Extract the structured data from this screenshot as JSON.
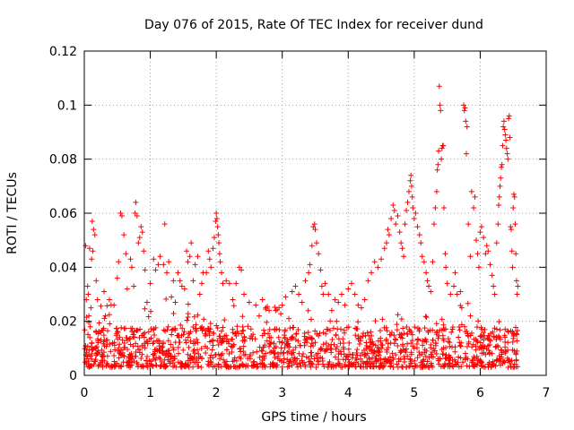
{
  "chart_data": {
    "type": "scatter",
    "title": "Day 076 of 2015, Rate Of TEC Index for receiver dund",
    "xlabel": "GPS time / hours",
    "ylabel": "ROTI / TECUs",
    "xlim": [
      0,
      7
    ],
    "ylim": [
      0,
      0.12
    ],
    "xticks": [
      0,
      1,
      2,
      3,
      4,
      5,
      6,
      7
    ],
    "xtick_labels": [
      "0",
      "1",
      "2",
      "3",
      "4",
      "5",
      "6",
      "7"
    ],
    "yticks": [
      0,
      0.02,
      0.04,
      0.06,
      0.08,
      0.1,
      0.12
    ],
    "ytick_labels": [
      "0",
      "0.02",
      "0.04",
      "0.06",
      "0.08",
      "0.1",
      "0.12"
    ],
    "grid": true,
    "marker": "plus",
    "color": "#ff0000",
    "series": [
      {
        "name": "ROTI",
        "points": [
          [
            0.02,
            0.048
          ],
          [
            0.03,
            0.028
          ],
          [
            0.05,
            0.033
          ],
          [
            0.06,
            0.03
          ],
          [
            0.07,
            0.022
          ],
          [
            0.08,
            0.047
          ],
          [
            0.09,
            0.018
          ],
          [
            0.1,
            0.025
          ],
          [
            0.11,
            0.043
          ],
          [
            0.12,
            0.057
          ],
          [
            0.13,
            0.046
          ],
          [
            0.14,
            0.054
          ],
          [
            0.16,
            0.052
          ],
          [
            0.18,
            0.035
          ],
          [
            0.2,
            0.028
          ],
          [
            0.3,
            0.031
          ],
          [
            0.32,
            0.022
          ],
          [
            0.38,
            0.028
          ],
          [
            0.45,
            0.026
          ],
          [
            0.5,
            0.036
          ],
          [
            0.52,
            0.042
          ],
          [
            0.55,
            0.06
          ],
          [
            0.57,
            0.059
          ],
          [
            0.6,
            0.052
          ],
          [
            0.63,
            0.045
          ],
          [
            0.65,
            0.032
          ],
          [
            0.7,
            0.043
          ],
          [
            0.72,
            0.04
          ],
          [
            0.75,
            0.033
          ],
          [
            0.77,
            0.06
          ],
          [
            0.78,
            0.064
          ],
          [
            0.8,
            0.059
          ],
          [
            0.82,
            0.049
          ],
          [
            0.84,
            0.051
          ],
          [
            0.86,
            0.055
          ],
          [
            0.88,
            0.053
          ],
          [
            0.9,
            0.046
          ],
          [
            0.92,
            0.039
          ],
          [
            0.95,
            0.027
          ],
          [
            1.0,
            0.034
          ],
          [
            1.05,
            0.043
          ],
          [
            1.08,
            0.039
          ],
          [
            1.12,
            0.041
          ],
          [
            1.15,
            0.044
          ],
          [
            1.2,
            0.041
          ],
          [
            1.22,
            0.056
          ],
          [
            1.25,
            0.038
          ],
          [
            1.28,
            0.042
          ],
          [
            1.32,
            0.029
          ],
          [
            1.35,
            0.035
          ],
          [
            1.38,
            0.027
          ],
          [
            1.42,
            0.038
          ],
          [
            1.45,
            0.035
          ],
          [
            1.48,
            0.033
          ],
          [
            1.52,
            0.032
          ],
          [
            1.55,
            0.046
          ],
          [
            1.57,
            0.042
          ],
          [
            1.6,
            0.044
          ],
          [
            1.62,
            0.049
          ],
          [
            1.65,
            0.035
          ],
          [
            1.68,
            0.041
          ],
          [
            1.72,
            0.044
          ],
          [
            1.75,
            0.03
          ],
          [
            1.78,
            0.034
          ],
          [
            1.8,
            0.038
          ],
          [
            1.85,
            0.038
          ],
          [
            1.88,
            0.046
          ],
          [
            1.9,
            0.043
          ],
          [
            1.92,
            0.04
          ],
          [
            1.95,
            0.047
          ],
          [
            1.97,
            0.051
          ],
          [
            1.99,
            0.057
          ],
          [
            2.0,
            0.06
          ],
          [
            2.01,
            0.058
          ],
          [
            2.02,
            0.055
          ],
          [
            2.03,
            0.052
          ],
          [
            2.04,
            0.049
          ],
          [
            2.05,
            0.045
          ],
          [
            2.06,
            0.042
          ],
          [
            2.08,
            0.038
          ],
          [
            2.1,
            0.034
          ],
          [
            2.15,
            0.035
          ],
          [
            2.2,
            0.034
          ],
          [
            2.25,
            0.028
          ],
          [
            2.3,
            0.034
          ],
          [
            2.35,
            0.04
          ],
          [
            2.38,
            0.039
          ],
          [
            2.42,
            0.03
          ],
          [
            2.5,
            0.027
          ],
          [
            2.6,
            0.026
          ],
          [
            2.65,
            0.022
          ],
          [
            2.7,
            0.028
          ],
          [
            2.75,
            0.025
          ],
          [
            2.8,
            0.024
          ],
          [
            2.9,
            0.024
          ],
          [
            2.95,
            0.025
          ],
          [
            3.0,
            0.026
          ],
          [
            3.05,
            0.029
          ],
          [
            3.1,
            0.021
          ],
          [
            3.15,
            0.031
          ],
          [
            3.2,
            0.033
          ],
          [
            3.25,
            0.03
          ],
          [
            3.3,
            0.027
          ],
          [
            3.35,
            0.035
          ],
          [
            3.4,
            0.038
          ],
          [
            3.42,
            0.041
          ],
          [
            3.45,
            0.048
          ],
          [
            3.47,
            0.055
          ],
          [
            3.49,
            0.056
          ],
          [
            3.5,
            0.054
          ],
          [
            3.52,
            0.049
          ],
          [
            3.55,
            0.045
          ],
          [
            3.58,
            0.039
          ],
          [
            3.6,
            0.033
          ],
          [
            3.62,
            0.03
          ],
          [
            3.65,
            0.034
          ],
          [
            3.7,
            0.03
          ],
          [
            3.75,
            0.024
          ],
          [
            3.8,
            0.028
          ],
          [
            3.85,
            0.027
          ],
          [
            3.9,
            0.03
          ],
          [
            3.95,
            0.026
          ],
          [
            4.0,
            0.032
          ],
          [
            4.05,
            0.034
          ],
          [
            4.1,
            0.03
          ],
          [
            4.15,
            0.026
          ],
          [
            4.2,
            0.025
          ],
          [
            4.25,
            0.028
          ],
          [
            4.3,
            0.035
          ],
          [
            4.35,
            0.038
          ],
          [
            4.4,
            0.042
          ],
          [
            4.45,
            0.04
          ],
          [
            4.5,
            0.043
          ],
          [
            4.55,
            0.047
          ],
          [
            4.58,
            0.049
          ],
          [
            4.6,
            0.054
          ],
          [
            4.62,
            0.052
          ],
          [
            4.65,
            0.058
          ],
          [
            4.68,
            0.063
          ],
          [
            4.7,
            0.061
          ],
          [
            4.72,
            0.056
          ],
          [
            4.75,
            0.059
          ],
          [
            4.78,
            0.053
          ],
          [
            4.8,
            0.049
          ],
          [
            4.82,
            0.047
          ],
          [
            4.84,
            0.044
          ],
          [
            4.86,
            0.056
          ],
          [
            4.88,
            0.061
          ],
          [
            4.9,
            0.064
          ],
          [
            4.92,
            0.068
          ],
          [
            4.94,
            0.072
          ],
          [
            4.95,
            0.074
          ],
          [
            4.96,
            0.07
          ],
          [
            4.97,
            0.066
          ],
          [
            4.98,
            0.062
          ],
          [
            5.0,
            0.058
          ],
          [
            5.02,
            0.06
          ],
          [
            5.05,
            0.055
          ],
          [
            5.08,
            0.052
          ],
          [
            5.1,
            0.049
          ],
          [
            5.12,
            0.044
          ],
          [
            5.15,
            0.042
          ],
          [
            5.18,
            0.038
          ],
          [
            5.2,
            0.035
          ],
          [
            5.22,
            0.033
          ],
          [
            5.25,
            0.031
          ],
          [
            5.28,
            0.042
          ],
          [
            5.3,
            0.056
          ],
          [
            5.32,
            0.062
          ],
          [
            5.34,
            0.068
          ],
          [
            5.35,
            0.076
          ],
          [
            5.36,
            0.078
          ],
          [
            5.37,
            0.083
          ],
          [
            5.38,
            0.107
          ],
          [
            5.39,
            0.1
          ],
          [
            5.4,
            0.098
          ],
          [
            5.41,
            0.08
          ],
          [
            5.42,
            0.084
          ],
          [
            5.43,
            0.085
          ],
          [
            5.44,
            0.085
          ],
          [
            5.45,
            0.062
          ],
          [
            5.47,
            0.045
          ],
          [
            5.48,
            0.04
          ],
          [
            5.5,
            0.034
          ],
          [
            5.55,
            0.03
          ],
          [
            5.6,
            0.033
          ],
          [
            5.62,
            0.038
          ],
          [
            5.65,
            0.03
          ],
          [
            5.7,
            0.031
          ],
          [
            5.72,
            0.025
          ],
          [
            5.75,
            0.1
          ],
          [
            5.76,
            0.098
          ],
          [
            5.77,
            0.099
          ],
          [
            5.78,
            0.094
          ],
          [
            5.79,
            0.082
          ],
          [
            5.8,
            0.092
          ],
          [
            5.82,
            0.056
          ],
          [
            5.85,
            0.044
          ],
          [
            5.87,
            0.068
          ],
          [
            5.9,
            0.062
          ],
          [
            5.92,
            0.066
          ],
          [
            5.94,
            0.05
          ],
          [
            5.96,
            0.045
          ],
          [
            5.98,
            0.04
          ],
          [
            6.0,
            0.053
          ],
          [
            6.02,
            0.055
          ],
          [
            6.05,
            0.051
          ],
          [
            6.08,
            0.045
          ],
          [
            6.1,
            0.048
          ],
          [
            6.12,
            0.046
          ],
          [
            6.15,
            0.041
          ],
          [
            6.18,
            0.037
          ],
          [
            6.2,
            0.033
          ],
          [
            6.22,
            0.03
          ],
          [
            6.25,
            0.049
          ],
          [
            6.27,
            0.056
          ],
          [
            6.28,
            0.063
          ],
          [
            6.29,
            0.066
          ],
          [
            6.3,
            0.07
          ],
          [
            6.31,
            0.073
          ],
          [
            6.32,
            0.077
          ],
          [
            6.33,
            0.078
          ],
          [
            6.34,
            0.085
          ],
          [
            6.35,
            0.092
          ],
          [
            6.36,
            0.094
          ],
          [
            6.37,
            0.091
          ],
          [
            6.38,
            0.089
          ],
          [
            6.39,
            0.087
          ],
          [
            6.4,
            0.084
          ],
          [
            6.41,
            0.082
          ],
          [
            6.42,
            0.08
          ],
          [
            6.43,
            0.095
          ],
          [
            6.44,
            0.096
          ],
          [
            6.45,
            0.088
          ],
          [
            6.46,
            0.055
          ],
          [
            6.47,
            0.054
          ],
          [
            6.48,
            0.046
          ],
          [
            6.49,
            0.04
          ],
          [
            6.5,
            0.062
          ],
          [
            6.51,
            0.067
          ],
          [
            6.52,
            0.066
          ],
          [
            6.53,
            0.056
          ],
          [
            6.54,
            0.045
          ],
          [
            6.55,
            0.035
          ],
          [
            6.56,
            0.03
          ],
          [
            6.57,
            0.033
          ]
        ],
        "band": {
          "x_start": 0.0,
          "x_end": 6.57,
          "y_floor": 0.003,
          "y_ceiling": 0.018
        }
      }
    ]
  }
}
